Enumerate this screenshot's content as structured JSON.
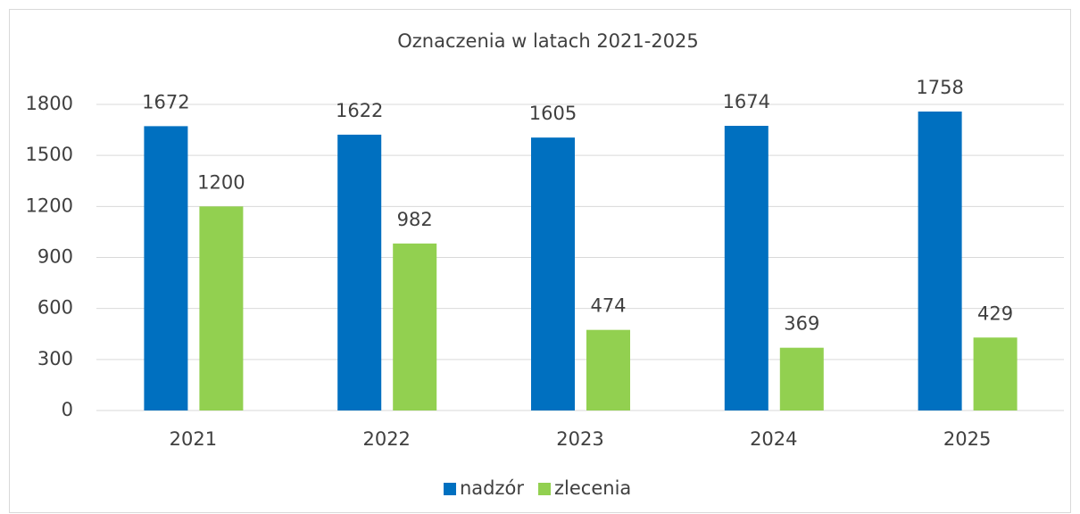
{
  "chart_data": {
    "type": "bar",
    "title": "Oznaczenia w latach 2021-2025",
    "categories": [
      "2021",
      "2022",
      "2023",
      "2024",
      "2025"
    ],
    "series": [
      {
        "name": "nadzór",
        "color": "#0070c0",
        "values": [
          1672,
          1622,
          1605,
          1674,
          1758
        ]
      },
      {
        "name": "zlecenia",
        "color": "#92d050",
        "values": [
          1200,
          982,
          474,
          369,
          429
        ]
      }
    ],
    "ylim": [
      0,
      1800
    ],
    "yticks": [
      0,
      300,
      600,
      900,
      1200,
      1500,
      1800
    ],
    "grid": true,
    "legend": "bottom"
  }
}
